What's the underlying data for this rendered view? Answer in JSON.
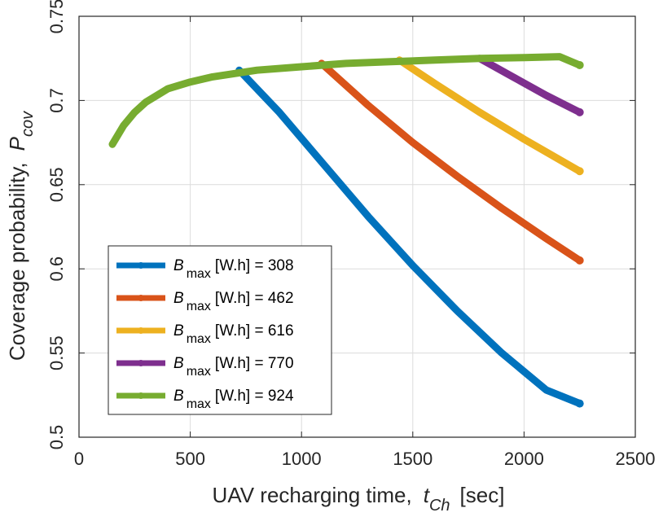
{
  "chart_data": {
    "type": "line",
    "title": "",
    "xlabel": "UAV recharging time,",
    "xlabel_symbol": "t",
    "xlabel_subscript": "Ch",
    "xlabel_unit": "[sec]",
    "ylabel": "Coverage probability,",
    "ylabel_symbol": "P",
    "ylabel_subscript": "cov",
    "xlim": [
      0,
      2500
    ],
    "ylim": [
      0.5,
      0.75
    ],
    "xticks": [
      0,
      500,
      1000,
      1500,
      2000,
      2500
    ],
    "xtick_labels": [
      "0",
      "500",
      "1000",
      "1500",
      "2000",
      "2500"
    ],
    "yticks": [
      0.5,
      0.55,
      0.6,
      0.65,
      0.7,
      0.75
    ],
    "ytick_labels": [
      "0.5",
      "0.55",
      "0.6",
      "0.65",
      "0.7",
      "0.75"
    ],
    "grid": true,
    "legend_position": "bottom-left",
    "series": [
      {
        "name": "B max [W.h] = 308",
        "legend_symbol": "B",
        "legend_subscript": "max",
        "legend_rest": "[W.h] = 308",
        "color": "#0072BD",
        "x": [
          720,
          900,
          1100,
          1300,
          1500,
          1700,
          1900,
          2100,
          2250
        ],
        "y": [
          0.718,
          0.693,
          0.662,
          0.631,
          0.602,
          0.575,
          0.55,
          0.528,
          0.52
        ]
      },
      {
        "name": "B max [W.h] = 462",
        "legend_symbol": "B",
        "legend_subscript": "max",
        "legend_rest": "[W.h] = 462",
        "color": "#D95319",
        "x": [
          1090,
          1300,
          1500,
          1700,
          1900,
          2100,
          2250
        ],
        "y": [
          0.722,
          0.697,
          0.675,
          0.655,
          0.636,
          0.618,
          0.605
        ]
      },
      {
        "name": "B max [W.h] = 616",
        "legend_symbol": "B",
        "legend_subscript": "max",
        "legend_rest": "[W.h] = 616",
        "color": "#EDB120",
        "x": [
          1440,
          1600,
          1800,
          2000,
          2250
        ],
        "y": [
          0.724,
          0.71,
          0.693,
          0.677,
          0.658
        ]
      },
      {
        "name": "B max [W.h] = 770",
        "legend_symbol": "B",
        "legend_subscript": "max",
        "legend_rest": "[W.h] = 770",
        "color": "#7E2F8E",
        "x": [
          1800,
          1950,
          2100,
          2250
        ],
        "y": [
          0.725,
          0.714,
          0.703,
          0.693
        ]
      },
      {
        "name": "B max [W.h] = 924",
        "legend_symbol": "B",
        "legend_subscript": "max",
        "legend_rest": "[W.h] = 924",
        "color": "#77AC30",
        "x": [
          150,
          200,
          250,
          300,
          400,
          500,
          600,
          700,
          800,
          1000,
          1200,
          1400,
          1600,
          1800,
          2000,
          2160,
          2250
        ],
        "y": [
          0.674,
          0.685,
          0.693,
          0.699,
          0.707,
          0.711,
          0.714,
          0.716,
          0.718,
          0.72,
          0.722,
          0.723,
          0.724,
          0.725,
          0.7255,
          0.726,
          0.721
        ]
      }
    ]
  }
}
